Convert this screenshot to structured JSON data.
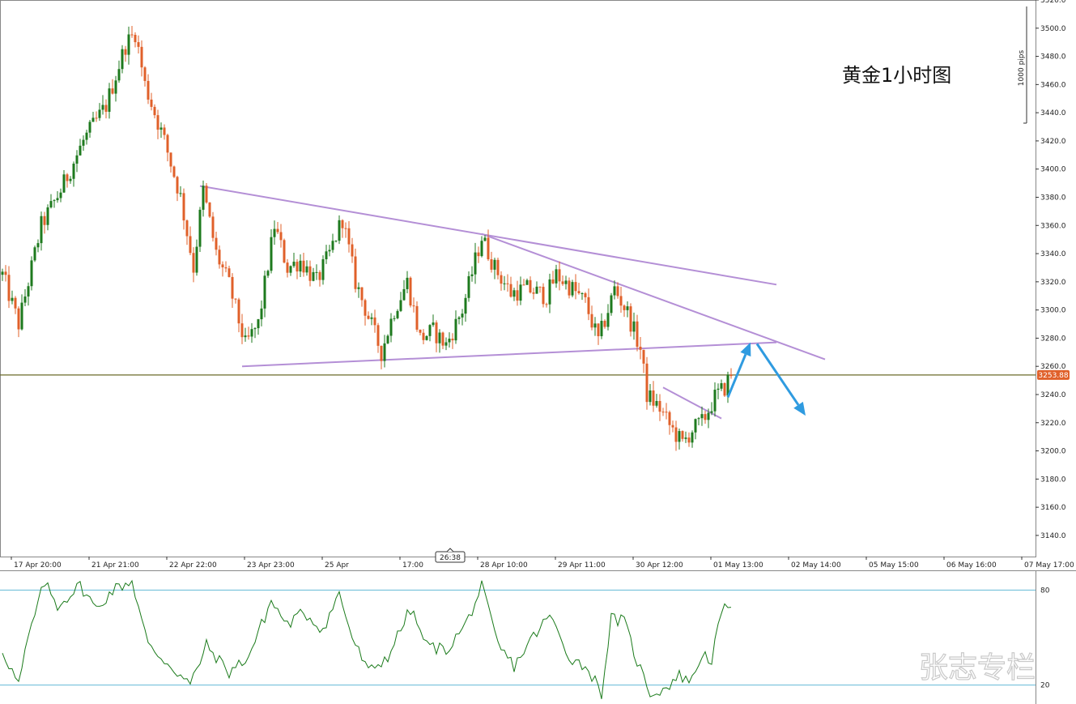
{
  "chart_data": [
    {
      "type": "candlestick",
      "title": "黄金1小时图",
      "scale_label": "1000 pips",
      "ylim": [
        3125,
        3520
      ],
      "y_ticks": [
        "3520.0",
        "3500.0",
        "3480.0",
        "3460.0",
        "3440.0",
        "3420.0",
        "3400.0",
        "3380.0",
        "3360.0",
        "3340.0",
        "3320.0",
        "3300.0",
        "3280.0",
        "3260.0",
        "3240.0",
        "3220.0",
        "3200.0",
        "3180.0",
        "3160.0",
        "3140.0"
      ],
      "x_ticks": [
        "17 Apr 20:00",
        "21 Apr 21:00",
        "22 Apr 22:00",
        "23 Apr 23:00",
        "25 Apr",
        "17:00",
        "28 Apr 10:00",
        "29 Apr 11:00",
        "30 Apr 12:00",
        "01 May 13:00",
        "02 May 14:00",
        "05 May 15:00",
        "06 May 16:00",
        "07 May 17:00"
      ],
      "crosshair_label": "26:38",
      "current_price": 3253.88,
      "current_price_label": "3253.88",
      "anchor_points": [
        {
          "bar": 0,
          "price": 3325
        },
        {
          "bar": 5,
          "price": 3290
        },
        {
          "bar": 12,
          "price": 3360
        },
        {
          "bar": 18,
          "price": 3385
        },
        {
          "bar": 25,
          "price": 3420
        },
        {
          "bar": 32,
          "price": 3445
        },
        {
          "bar": 38,
          "price": 3488
        },
        {
          "bar": 41,
          "price": 3497
        },
        {
          "bar": 44,
          "price": 3460
        },
        {
          "bar": 50,
          "price": 3420
        },
        {
          "bar": 55,
          "price": 3380
        },
        {
          "bar": 59,
          "price": 3330
        },
        {
          "bar": 62,
          "price": 3385
        },
        {
          "bar": 66,
          "price": 3340
        },
        {
          "bar": 70,
          "price": 3318
        },
        {
          "bar": 75,
          "price": 3275
        },
        {
          "bar": 79,
          "price": 3290
        },
        {
          "bar": 84,
          "price": 3360
        },
        {
          "bar": 88,
          "price": 3330
        },
        {
          "bar": 92,
          "price": 3335
        },
        {
          "bar": 97,
          "price": 3320
        },
        {
          "bar": 101,
          "price": 3340
        },
        {
          "bar": 105,
          "price": 3365
        },
        {
          "bar": 109,
          "price": 3320
        },
        {
          "bar": 113,
          "price": 3295
        },
        {
          "bar": 117,
          "price": 3270
        },
        {
          "bar": 121,
          "price": 3300
        },
        {
          "bar": 125,
          "price": 3320
        },
        {
          "bar": 129,
          "price": 3280
        },
        {
          "bar": 133,
          "price": 3285
        },
        {
          "bar": 137,
          "price": 3275
        },
        {
          "bar": 142,
          "price": 3300
        },
        {
          "bar": 146,
          "price": 3335
        },
        {
          "bar": 148,
          "price": 3352
        },
        {
          "bar": 152,
          "price": 3330
        },
        {
          "bar": 157,
          "price": 3312
        },
        {
          "bar": 162,
          "price": 3315
        },
        {
          "bar": 168,
          "price": 3310
        },
        {
          "bar": 171,
          "price": 3325
        },
        {
          "bar": 176,
          "price": 3315
        },
        {
          "bar": 180,
          "price": 3305
        },
        {
          "bar": 184,
          "price": 3278
        },
        {
          "bar": 187,
          "price": 3300
        },
        {
          "bar": 189,
          "price": 3315
        },
        {
          "bar": 193,
          "price": 3298
        },
        {
          "bar": 197,
          "price": 3272
        },
        {
          "bar": 199,
          "price": 3240
        },
        {
          "bar": 203,
          "price": 3230
        },
        {
          "bar": 206,
          "price": 3218
        },
        {
          "bar": 210,
          "price": 3205
        },
        {
          "bar": 213,
          "price": 3215
        },
        {
          "bar": 216,
          "price": 3220
        },
        {
          "bar": 220,
          "price": 3238
        },
        {
          "bar": 223,
          "price": 3245
        },
        {
          "bar": 225,
          "price": 3255
        }
      ],
      "trendlines": [
        {
          "from": {
            "bar": 61,
            "price": 3388
          },
          "to": {
            "bar": 239,
            "price": 3318
          }
        },
        {
          "from": {
            "bar": 148,
            "price": 3354
          },
          "to": {
            "bar": 254,
            "price": 3265
          }
        },
        {
          "from": {
            "bar": 74,
            "price": 3260
          },
          "to": {
            "bar": 239,
            "price": 3277
          }
        },
        {
          "from": {
            "bar": 204,
            "price": 3245
          },
          "to": {
            "bar": 222,
            "price": 3223
          }
        }
      ],
      "projection_arrows": [
        {
          "from": {
            "bar": 224,
            "price": 3238
          },
          "to": {
            "bar": 231,
            "price": 3277
          }
        },
        {
          "from": {
            "bar": 233,
            "price": 3276
          },
          "to": {
            "bar": 248,
            "price": 3225
          }
        }
      ],
      "colors": {
        "bull": "#1e7a1e",
        "bear": "#e0602a",
        "trendline": "#b48fd6",
        "arrow": "#2f9be0",
        "price_line": "#6b6b2a",
        "price_badge": "#e0602a",
        "indicator": "#1a7a1a",
        "indicator_level": "#63b9d6"
      }
    },
    {
      "type": "line",
      "levels": [
        "80",
        "20"
      ],
      "ylim": [
        8,
        92
      ],
      "anchor_points": [
        {
          "bar": 0,
          "value": 42
        },
        {
          "bar": 5,
          "value": 20
        },
        {
          "bar": 8,
          "value": 50
        },
        {
          "bar": 13,
          "value": 85
        },
        {
          "bar": 17,
          "value": 70
        },
        {
          "bar": 24,
          "value": 83
        },
        {
          "bar": 29,
          "value": 68
        },
        {
          "bar": 34,
          "value": 80
        },
        {
          "bar": 40,
          "value": 86
        },
        {
          "bar": 45,
          "value": 45
        },
        {
          "bar": 52,
          "value": 32
        },
        {
          "bar": 58,
          "value": 20
        },
        {
          "bar": 63,
          "value": 45
        },
        {
          "bar": 70,
          "value": 28
        },
        {
          "bar": 76,
          "value": 38
        },
        {
          "bar": 83,
          "value": 73
        },
        {
          "bar": 88,
          "value": 58
        },
        {
          "bar": 93,
          "value": 66
        },
        {
          "bar": 99,
          "value": 55
        },
        {
          "bar": 104,
          "value": 78
        },
        {
          "bar": 108,
          "value": 50
        },
        {
          "bar": 113,
          "value": 28
        },
        {
          "bar": 119,
          "value": 38
        },
        {
          "bar": 126,
          "value": 68
        },
        {
          "bar": 131,
          "value": 45
        },
        {
          "bar": 137,
          "value": 42
        },
        {
          "bar": 143,
          "value": 58
        },
        {
          "bar": 148,
          "value": 82
        },
        {
          "bar": 153,
          "value": 45
        },
        {
          "bar": 158,
          "value": 32
        },
        {
          "bar": 163,
          "value": 48
        },
        {
          "bar": 169,
          "value": 64
        },
        {
          "bar": 175,
          "value": 38
        },
        {
          "bar": 181,
          "value": 30
        },
        {
          "bar": 185,
          "value": 15
        },
        {
          "bar": 188,
          "value": 62
        },
        {
          "bar": 192,
          "value": 60
        },
        {
          "bar": 196,
          "value": 35
        },
        {
          "bar": 200,
          "value": 15
        },
        {
          "bar": 204,
          "value": 17
        },
        {
          "bar": 209,
          "value": 26
        },
        {
          "bar": 213,
          "value": 23
        },
        {
          "bar": 216,
          "value": 40
        },
        {
          "bar": 219,
          "value": 36
        },
        {
          "bar": 222,
          "value": 65
        },
        {
          "bar": 225,
          "value": 72
        }
      ]
    }
  ],
  "watermark": "张志专栏"
}
